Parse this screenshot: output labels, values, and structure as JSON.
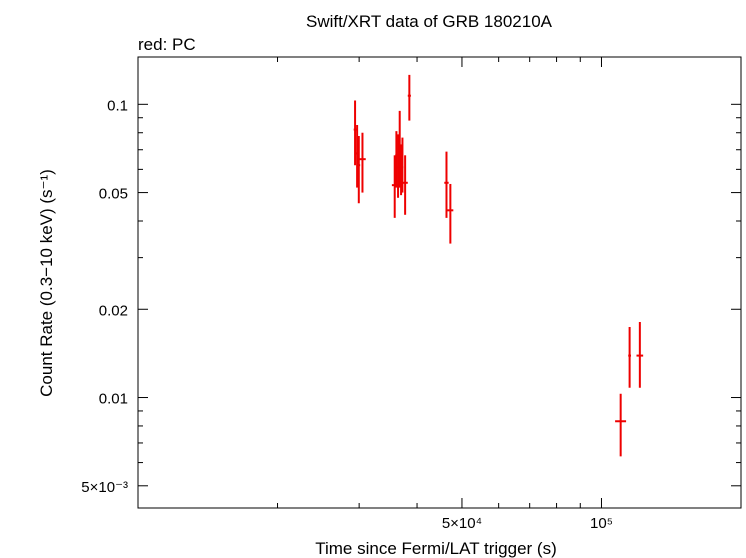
{
  "chart_data": {
    "type": "scatter",
    "title": "Swift/XRT data of GRB 180210A",
    "subtitle": "red: PC",
    "xlabel": "Time since Fermi/LAT trigger (s)",
    "ylabel": "Count Rate (0.3−10 keV) (s⁻¹)",
    "x_scale": "log",
    "y_scale": "log",
    "xlim": [
      10000,
      200000
    ],
    "ylim": [
      0.0042,
      0.145
    ],
    "grid": false,
    "x_ticks": [
      {
        "value": 50000,
        "label": "5×10⁴"
      },
      {
        "value": 100000,
        "label": "10⁵"
      }
    ],
    "y_ticks": [
      {
        "value": 0.005,
        "label": "5×10⁻³"
      },
      {
        "value": 0.01,
        "label": "0.01"
      },
      {
        "value": 0.02,
        "label": "0.02"
      },
      {
        "value": 0.05,
        "label": "0.05"
      },
      {
        "value": 0.1,
        "label": "0.1"
      }
    ],
    "series_color": "#ee0000",
    "points": [
      {
        "x": 29400,
        "xlo": 29200,
        "xhi": 29600,
        "y": 0.082,
        "ylo": 0.062,
        "yhi": 0.103
      },
      {
        "x": 29700,
        "xlo": 29500,
        "xhi": 29900,
        "y": 0.068,
        "ylo": 0.052,
        "yhi": 0.085
      },
      {
        "x": 29950,
        "xlo": 29750,
        "xhi": 30150,
        "y": 0.062,
        "ylo": 0.046,
        "yhi": 0.078
      },
      {
        "x": 30500,
        "xlo": 30000,
        "xhi": 31000,
        "y": 0.065,
        "ylo": 0.05,
        "yhi": 0.08
      },
      {
        "x": 35800,
        "xlo": 35300,
        "xhi": 36300,
        "y": 0.053,
        "ylo": 0.041,
        "yhi": 0.067
      },
      {
        "x": 36100,
        "xlo": 35900,
        "xhi": 36300,
        "y": 0.067,
        "ylo": 0.052,
        "yhi": 0.081
      },
      {
        "x": 36400,
        "xlo": 36200,
        "xhi": 36600,
        "y": 0.061,
        "ylo": 0.048,
        "yhi": 0.079
      },
      {
        "x": 36700,
        "xlo": 36500,
        "xhi": 36900,
        "y": 0.065,
        "ylo": 0.052,
        "yhi": 0.095
      },
      {
        "x": 36950,
        "xlo": 36750,
        "xhi": 37150,
        "y": 0.06,
        "ylo": 0.049,
        "yhi": 0.073
      },
      {
        "x": 37200,
        "xlo": 37000,
        "xhi": 37400,
        "y": 0.061,
        "ylo": 0.05,
        "yhi": 0.077
      },
      {
        "x": 37700,
        "xlo": 37200,
        "xhi": 38200,
        "y": 0.054,
        "ylo": 0.042,
        "yhi": 0.067
      },
      {
        "x": 38500,
        "xlo": 38200,
        "xhi": 38800,
        "y": 0.107,
        "ylo": 0.088,
        "yhi": 0.126
      },
      {
        "x": 46300,
        "xlo": 45800,
        "xhi": 46800,
        "y": 0.054,
        "ylo": 0.041,
        "yhi": 0.069
      },
      {
        "x": 47200,
        "xlo": 46500,
        "xhi": 47900,
        "y": 0.0435,
        "ylo": 0.0335,
        "yhi": 0.0535
      },
      {
        "x": 110000,
        "xlo": 107000,
        "xhi": 113000,
        "y": 0.0083,
        "ylo": 0.0063,
        "yhi": 0.0103
      },
      {
        "x": 115000,
        "xlo": 114200,
        "xhi": 115800,
        "y": 0.0139,
        "ylo": 0.0108,
        "yhi": 0.0174
      },
      {
        "x": 121000,
        "xlo": 119000,
        "xhi": 123000,
        "y": 0.0139,
        "ylo": 0.0108,
        "yhi": 0.0181
      }
    ]
  }
}
